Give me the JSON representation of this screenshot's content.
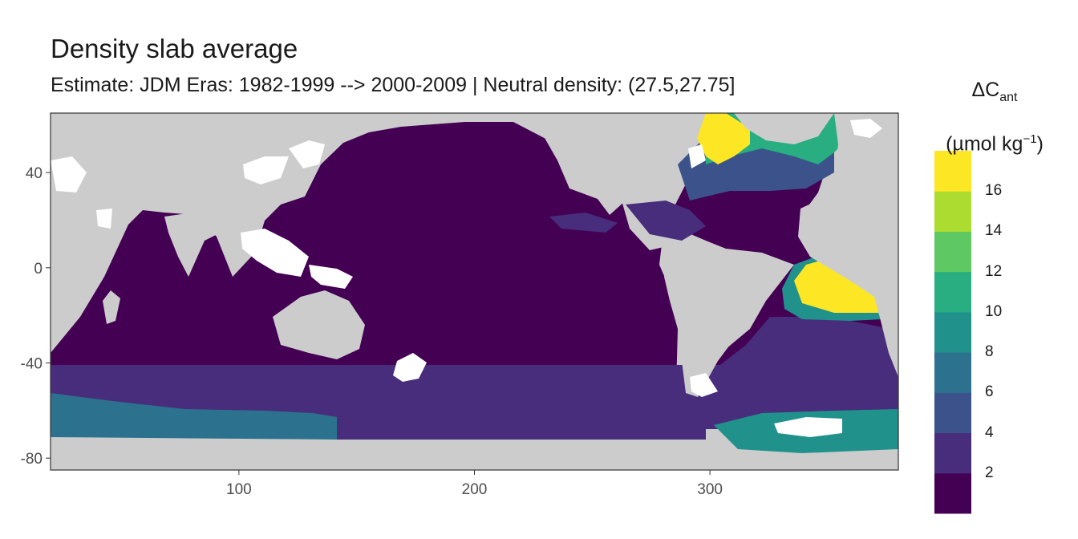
{
  "title": "Density slab average",
  "subtitle": "Estimate: JDM Eras: 1982-1999 --> 2000-2009 | Neutral density: (27.5,27.75]",
  "legend": {
    "title_main": "ΔC",
    "title_sub": "ant",
    "unit_prefix": "(µmol kg",
    "unit_sup": "−1",
    "unit_suffix": ")",
    "colors": [
      "#440154",
      "#472d7b",
      "#3b528b",
      "#2c728e",
      "#21918c",
      "#28ae80",
      "#5ec962",
      "#addc30",
      "#fde725"
    ],
    "labels": [
      "2",
      "4",
      "6",
      "8",
      "10",
      "12",
      "14",
      "16"
    ]
  },
  "colors": {
    "land": "#cccccc",
    "no_data": "#ffffff",
    "frame": "#333333"
  },
  "chart_data": {
    "type": "heatmap",
    "projection": "longitude-latitude",
    "x_ticks": [
      "100",
      "200",
      "300"
    ],
    "y_ticks": [
      "40",
      "0",
      "-40",
      "-80"
    ],
    "xlim": [
      20,
      380
    ],
    "ylim": [
      -85,
      65
    ],
    "color_scale": {
      "variable": "ΔC_ant",
      "unit": "µmol kg−1",
      "palette": "viridis",
      "breaks": [
        2,
        4,
        6,
        8,
        10,
        12,
        14,
        16
      ],
      "range": [
        0,
        18
      ]
    },
    "regions": [
      {
        "name": "Indian and Pacific basins",
        "bin": 0
      },
      {
        "name": "Atlantic interior",
        "bin": 0
      },
      {
        "name": "Southern Ocean belt",
        "bin": 1
      },
      {
        "name": "Southern Ocean south edge (Indian sector)",
        "bin": 3
      },
      {
        "name": "Southern Ocean south edge (Pacific sector)",
        "bin": 1
      },
      {
        "name": "Weddell Sea",
        "bin": 4
      },
      {
        "name": "South Atlantic band",
        "bin": 1
      },
      {
        "name": "Tropical North Pacific band",
        "bin": 1
      },
      {
        "name": "Caribbean",
        "bin": 1
      },
      {
        "name": "Labrador Sea",
        "bin": 8
      },
      {
        "name": "Irminger Sea",
        "bin": 5
      },
      {
        "name": "Eastern Tropical Atlantic",
        "bin": 8
      }
    ]
  }
}
